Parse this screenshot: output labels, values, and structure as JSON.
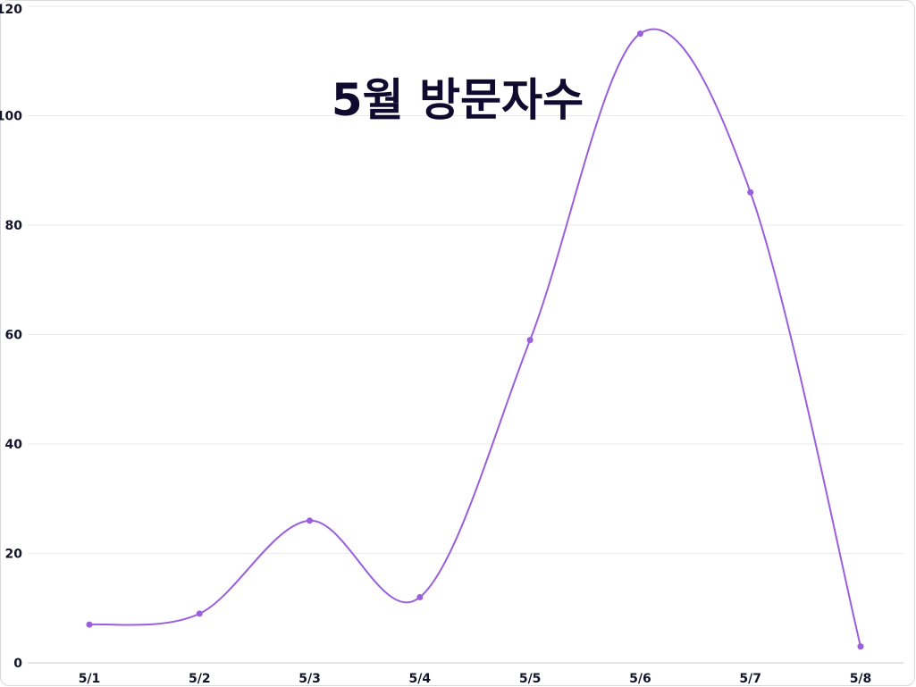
{
  "chart_data": {
    "type": "line",
    "title": "5월 방문자수",
    "xlabel": "",
    "ylabel": "",
    "categories": [
      "5/1",
      "5/2",
      "5/3",
      "5/4",
      "5/5",
      "5/6",
      "5/7",
      "5/8"
    ],
    "series": [
      {
        "values": [
          7,
          9,
          26,
          12,
          59,
          115,
          86,
          3
        ]
      }
    ],
    "ylim": [
      0,
      120
    ],
    "yticks": [
      "0",
      "20",
      "40",
      "60",
      "80",
      "100",
      "120"
    ],
    "grid": true,
    "legend": "none",
    "colors": {
      "line": "#9a5fdc",
      "grid": "#e9e9ee",
      "text": "#14142b",
      "title": "#0f0a2e"
    }
  }
}
